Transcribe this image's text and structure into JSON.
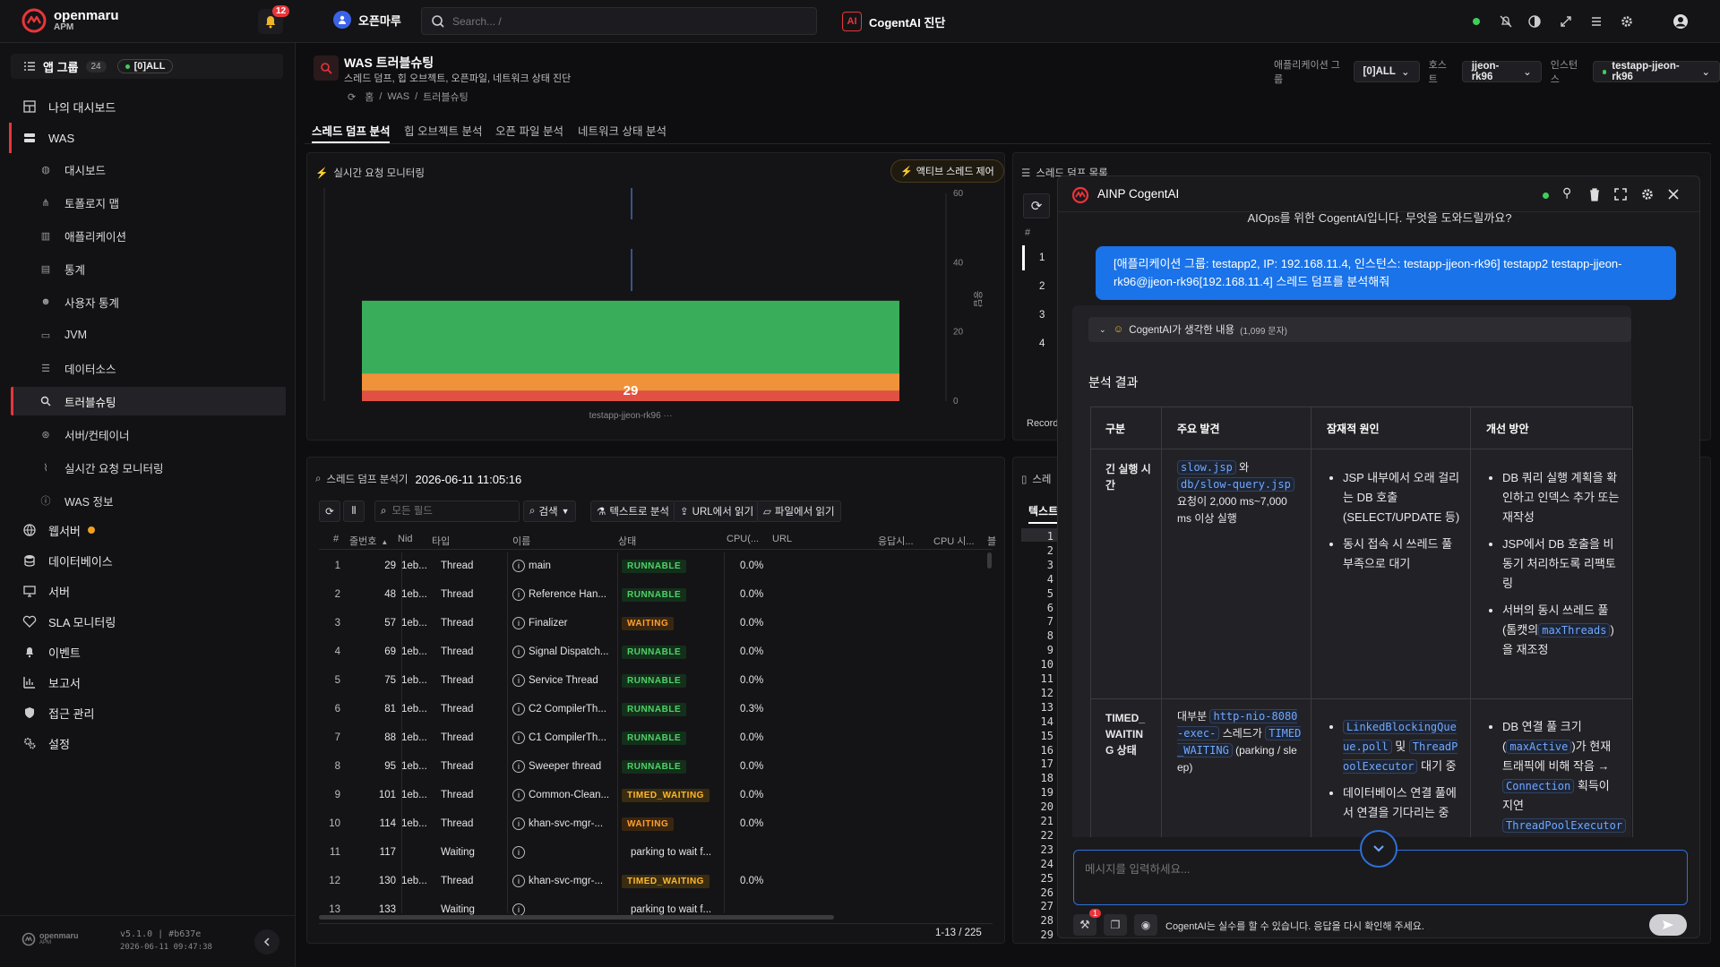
{
  "topbar": {
    "brand": "openmaru",
    "brand_sub": "APM",
    "notif_count": "12",
    "workspace": "오픈마루",
    "search_placeholder": "Search... /",
    "cogentai_label": "CogentAI 진단"
  },
  "sidebar": {
    "app_group_label": "앱 그룹",
    "app_group_count": "24",
    "app_group_filter": "[0]ALL",
    "items": [
      {
        "label": "나의 대시보드"
      },
      {
        "label": "WAS"
      },
      {
        "label": "웹서버"
      },
      {
        "label": "데이터베이스"
      },
      {
        "label": "서버"
      },
      {
        "label": "SLA 모니터링"
      },
      {
        "label": "이벤트"
      },
      {
        "label": "보고서"
      },
      {
        "label": "접근 관리"
      },
      {
        "label": "설정"
      }
    ],
    "was_items": [
      {
        "label": "대시보드"
      },
      {
        "label": "토폴로지 맵"
      },
      {
        "label": "애플리케이션"
      },
      {
        "label": "통계"
      },
      {
        "label": "사용자 통계"
      },
      {
        "label": "JVM"
      },
      {
        "label": "데이터소스"
      },
      {
        "label": "트러블슈팅"
      },
      {
        "label": "서버/컨테이너"
      },
      {
        "label": "실시간 요청 모니터링"
      },
      {
        "label": "WAS 정보"
      }
    ],
    "footer_brand": "openmaru",
    "footer_sub": "APM",
    "version": "v5.1.0 | #b637e",
    "build_time": "2026-06-11 09:47:38"
  },
  "page": {
    "title": "WAS 트러블슈팅",
    "subtitle": "스레드 덤프, 힙 오브젝트, 오픈파일, 네트워크 상태 진단",
    "breadcrumb": [
      "홈",
      "WAS",
      "트러블슈팅"
    ],
    "filters": {
      "app_group_label": "애플리케이션 그룹",
      "app_group_value": "[0]ALL",
      "host_label": "호스트",
      "host_value": "jjeon-rk96",
      "instance_label": "인스턴스",
      "instance_value": "testapp-jjeon-rk96"
    },
    "tabs": [
      "스레드 덤프 분석",
      "힙 오브젝트 분석",
      "오픈 파일 분석",
      "네트워크 상태 분석"
    ]
  },
  "realtime": {
    "title": "실시간 요청 모니터링",
    "action": "액티브 스레드 제어",
    "y_ticks": [
      "60",
      "40",
      "20",
      "0"
    ],
    "y_label": "응답",
    "bar_value": "29",
    "x_label": "testapp-jjeon-rk96 ···"
  },
  "chart_data": {
    "type": "bar",
    "categories": [
      "testapp-jjeon-rk96"
    ],
    "series": [
      {
        "values": [
          3
        ]
      },
      {
        "values": [
          5
        ]
      },
      {
        "values": [
          21
        ]
      }
    ],
    "colors": [
      "#e05143",
      "#f0923a",
      "#3aad5a"
    ],
    "total_label": 29,
    "ylabel": "응답",
    "ylim": [
      0,
      60
    ],
    "y_ticks": [
      0,
      20,
      40,
      60
    ],
    "grid": false,
    "legend": "none"
  },
  "dump_list": {
    "title": "스레드 덤프 목록",
    "col_hash": "#",
    "rows": [
      "1",
      "2",
      "3",
      "4"
    ],
    "footer": "Record"
  },
  "analyzer": {
    "title": "스레드 덤프 분석기",
    "timestamp": "2026-06-11 11:05:16",
    "field_placeholder": "모든 필드",
    "search_btn": "검색",
    "btn_text": "텍스트로 분석",
    "btn_url": "URL에서 읽기",
    "btn_file": "파일에서 읽기",
    "columns": [
      "#",
      "줄번호",
      "Nid",
      "타입",
      "이름",
      "상태",
      "CPU(...",
      "URL",
      "응답시...",
      "CPU 시...",
      "블"
    ],
    "rows": [
      {
        "idx": "1",
        "line": "29",
        "nid": "1eb...",
        "type": "Thread",
        "name": "main",
        "state": "RUNNABLE",
        "cpu": "0.0%"
      },
      {
        "idx": "2",
        "line": "48",
        "nid": "1eb...",
        "type": "Thread",
        "name": "Reference Han...",
        "state": "RUNNABLE",
        "cpu": "0.0%"
      },
      {
        "idx": "3",
        "line": "57",
        "nid": "1eb...",
        "type": "Thread",
        "name": "Finalizer",
        "state": "WAITING",
        "cpu": "0.0%"
      },
      {
        "idx": "4",
        "line": "69",
        "nid": "1eb...",
        "type": "Thread",
        "name": "Signal Dispatch...",
        "state": "RUNNABLE",
        "cpu": "0.0%"
      },
      {
        "idx": "5",
        "line": "75",
        "nid": "1eb...",
        "type": "Thread",
        "name": "Service Thread",
        "state": "RUNNABLE",
        "cpu": "0.0%"
      },
      {
        "idx": "6",
        "line": "81",
        "nid": "1eb...",
        "type": "Thread",
        "name": "C2 CompilerTh...",
        "state": "RUNNABLE",
        "cpu": "0.3%"
      },
      {
        "idx": "7",
        "line": "88",
        "nid": "1eb...",
        "type": "Thread",
        "name": "C1 CompilerTh...",
        "state": "RUNNABLE",
        "cpu": "0.0%"
      },
      {
        "idx": "8",
        "line": "95",
        "nid": "1eb...",
        "type": "Thread",
        "name": "Sweeper thread",
        "state": "RUNNABLE",
        "cpu": "0.0%"
      },
      {
        "idx": "9",
        "line": "101",
        "nid": "1eb...",
        "type": "Thread",
        "name": "Common-Clean...",
        "state": "TIMED_WAITING",
        "cpu": "0.0%"
      },
      {
        "idx": "10",
        "line": "114",
        "nid": "1eb...",
        "type": "Thread",
        "name": "khan-svc-mgr-...",
        "state": "WAITING",
        "cpu": "0.0%"
      },
      {
        "idx": "11",
        "line": "117",
        "nid": "",
        "type": "Waiting",
        "name": "",
        "state": "parking to wait f...",
        "cpu": ""
      },
      {
        "idx": "12",
        "line": "130",
        "nid": "1eb...",
        "type": "Thread",
        "name": "khan-svc-mgr-...",
        "state": "TIMED_WAITING",
        "cpu": "0.0%"
      },
      {
        "idx": "13",
        "line": "133",
        "nid": "",
        "type": "Waiting",
        "name": "",
        "state": "parking to wait f...",
        "cpu": ""
      }
    ],
    "pagination": "1-13 / 225"
  },
  "text_panel": {
    "title": "스레",
    "tab": "텍스트",
    "lines": [
      "1",
      "2",
      "3",
      "4",
      "5",
      "6",
      "7",
      "8",
      "9",
      "10",
      "11",
      "12",
      "13",
      "14",
      "15",
      "16",
      "17",
      "18",
      "19",
      "20",
      "21",
      "22",
      "23",
      "24",
      "25",
      "26",
      "27",
      "28",
      "29"
    ]
  },
  "chat": {
    "title": "AINP CogentAI",
    "greeting": "AIOps를 위한 CogentAI입니다. 무엇을 도와드릴까요?",
    "user_message": "[애플리케이션 그룹: testapp2, IP: 192.168.11.4, 인스턴스: testapp-jjeon-rk96] testapp2 testapp-jjeon-rk96@jjeon-rk96[192.168.11.4] 스레드 덤프를 분석해줘",
    "thinking_label": "CogentAI가 생각한 내용",
    "thinking_count": "(1,099 문자)",
    "result_heading": "분석 결과",
    "table_headers": [
      "구분",
      "주요 발견",
      "잠재적 원인",
      "개선 방안"
    ],
    "row1": {
      "category": "긴 실행 시간",
      "finding_code1": "slow.jsp",
      "finding_and": "와",
      "finding_code2": "db/slow-query.jsp",
      "finding_rest": "요청이 2,000 ms~7,000 ms 이상 실행",
      "causes": [
        "JSP 내부에서 오래 걸리는 DB 호출 (SELECT/UPDATE 등)",
        "동시 접속 시 쓰레드 풀 부족으로 대기"
      ],
      "fix1": "DB 쿼리 실행 계획을 확인하고 인덱스 추가 또는 재작성",
      "fix2": "JSP에서 DB 호출을 비동기 처리하도록 리팩토링",
      "fix3_pre": "서버의 동시 쓰레드 풀(톰캣의",
      "fix3_code": "maxThreads",
      "fix3_post": ")을 재조정"
    },
    "row2": {
      "category": "TIMED_WAITING 상태",
      "finding_pre": "대부분",
      "finding_code1": "http-nio-8080-exec-",
      "finding_mid": "스레드가",
      "finding_code2": "TIMED_WAITING",
      "finding_post": "(parking / sleep)",
      "cause_code1": "LinkedBlockingQueue.poll",
      "cause_and": "및",
      "cause_code2": "ThreadPoolExecutor",
      "cause_post": "대기 중",
      "cause2": "데이터베이스 연결 풀에서 연결을 기다리는 중",
      "fix_pre": "DB 연결 풀 크기(",
      "fix_code1": "maxActive",
      "fix_mid": ")가 현재 트래픽에 비해 작음 →",
      "fix_code2": "Connection",
      "fix_post": "획득이 지연",
      "fix_code3": "ThreadPoolExecutor"
    },
    "input_placeholder": "메시지를 입력하세요...",
    "tool_badge": "1",
    "disclaimer": "CogentAI는 실수를 할 수 있습니다. 응답을 다시 확인해 주세요."
  },
  "colors": {
    "accent": "#e8353b",
    "runnable": "#4fd167",
    "waiting": "#ffa12e",
    "chat_bubble": "#1a73e8",
    "code": "#6fa8ff"
  }
}
